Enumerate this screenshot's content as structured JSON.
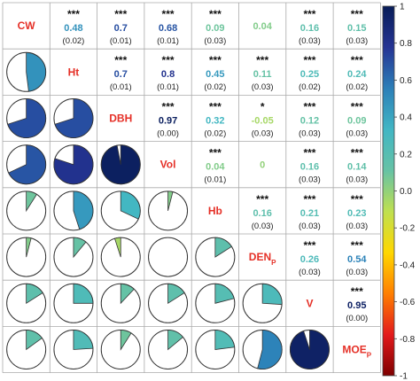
{
  "chart_data": {
    "type": "correlogram",
    "variables": [
      {
        "main": "CW",
        "sub": ""
      },
      {
        "main": "Ht",
        "sub": ""
      },
      {
        "main": "DBH",
        "sub": ""
      },
      {
        "main": "Vol",
        "sub": ""
      },
      {
        "main": "Hb",
        "sub": ""
      },
      {
        "main": "DEN",
        "sub": "P"
      },
      {
        "main": "V",
        "sub": ""
      },
      {
        "main": "MOE",
        "sub": "P"
      }
    ],
    "correlations": [
      {
        "row": 0,
        "col": 1,
        "value": "0.48",
        "stars": "***",
        "se": "(0.02)"
      },
      {
        "row": 0,
        "col": 2,
        "value": "0.7",
        "stars": "***",
        "se": "(0.01)"
      },
      {
        "row": 0,
        "col": 3,
        "value": "0.68",
        "stars": "***",
        "se": "(0.01)"
      },
      {
        "row": 0,
        "col": 4,
        "value": "0.09",
        "stars": "***",
        "se": "(0.03)"
      },
      {
        "row": 0,
        "col": 5,
        "value": "0.04",
        "stars": "",
        "se": ""
      },
      {
        "row": 0,
        "col": 6,
        "value": "0.16",
        "stars": "***",
        "se": "(0.03)"
      },
      {
        "row": 0,
        "col": 7,
        "value": "0.15",
        "stars": "***",
        "se": "(0.03)"
      },
      {
        "row": 1,
        "col": 2,
        "value": "0.7",
        "stars": "***",
        "se": "(0.01)"
      },
      {
        "row": 1,
        "col": 3,
        "value": "0.8",
        "stars": "***",
        "se": "(0.01)"
      },
      {
        "row": 1,
        "col": 4,
        "value": "0.45",
        "stars": "***",
        "se": "(0.02)"
      },
      {
        "row": 1,
        "col": 5,
        "value": "0.11",
        "stars": "***",
        "se": "(0.03)"
      },
      {
        "row": 1,
        "col": 6,
        "value": "0.25",
        "stars": "***",
        "se": "(0.02)"
      },
      {
        "row": 1,
        "col": 7,
        "value": "0.24",
        "stars": "***",
        "se": "(0.02)"
      },
      {
        "row": 2,
        "col": 3,
        "value": "0.97",
        "stars": "***",
        "se": "(0.00)"
      },
      {
        "row": 2,
        "col": 4,
        "value": "0.32",
        "stars": "***",
        "se": "(0.02)"
      },
      {
        "row": 2,
        "col": 5,
        "value": "-0.05",
        "stars": "*",
        "se": "(0.03)"
      },
      {
        "row": 2,
        "col": 6,
        "value": "0.12",
        "stars": "***",
        "se": "(0.03)"
      },
      {
        "row": 2,
        "col": 7,
        "value": "0.09",
        "stars": "***",
        "se": "(0.03)"
      },
      {
        "row": 3,
        "col": 4,
        "value": "0.04",
        "stars": "***",
        "se": "(0.01)"
      },
      {
        "row": 3,
        "col": 5,
        "value": "0",
        "stars": "",
        "se": ""
      },
      {
        "row": 3,
        "col": 6,
        "value": "0.16",
        "stars": "***",
        "se": "(0.03)"
      },
      {
        "row": 3,
        "col": 7,
        "value": "0.14",
        "stars": "***",
        "se": "(0.03)"
      },
      {
        "row": 4,
        "col": 5,
        "value": "0.16",
        "stars": "***",
        "se": "(0.03)"
      },
      {
        "row": 4,
        "col": 6,
        "value": "0.21",
        "stars": "***",
        "se": "(0.03)"
      },
      {
        "row": 4,
        "col": 7,
        "value": "0.23",
        "stars": "***",
        "se": "(0.03)"
      },
      {
        "row": 5,
        "col": 6,
        "value": "0.26",
        "stars": "***",
        "se": "(0.03)"
      },
      {
        "row": 5,
        "col": 7,
        "value": "0.54",
        "stars": "***",
        "se": "(0.03)"
      },
      {
        "row": 6,
        "col": 7,
        "value": "0.95",
        "stars": "***",
        "se": "(0.00)"
      }
    ],
    "colorbar": {
      "range": [
        -1,
        1
      ],
      "ticks": [
        "1",
        "0.8",
        "0.6",
        "0.4",
        "0.2",
        "0.0",
        "-0.2",
        "-0.4",
        "-0.6",
        "-0.8",
        "-1"
      ],
      "colormap": [
        "#7f0000",
        "#e31a1c",
        "#ff7f00",
        "#ffd700",
        "#bfe050",
        "#66c2a5",
        "#41b6c4",
        "#2c7fb8",
        "#253494",
        "#081d58"
      ]
    },
    "pie_outline_color": "#333333",
    "label_color": "#e53027",
    "grid_color": "#aaaaaa"
  }
}
